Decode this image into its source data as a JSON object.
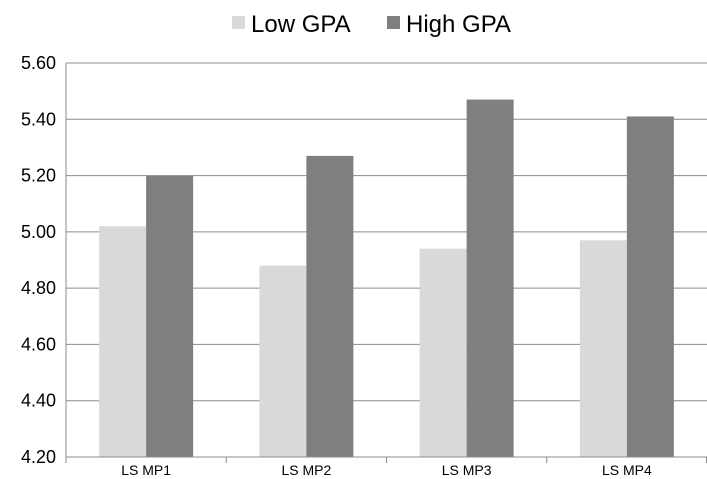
{
  "chart_data": {
    "type": "bar",
    "categories": [
      "LS MP1",
      "LS MP2",
      "LS MP3",
      "LS MP4"
    ],
    "series": [
      {
        "name": "Low GPA",
        "values": [
          5.02,
          4.88,
          4.94,
          4.97
        ],
        "color": "#d9d9d9"
      },
      {
        "name": "High GPA",
        "values": [
          5.2,
          5.27,
          5.47,
          5.41
        ],
        "color": "#7f7f7f"
      }
    ],
    "ylim": [
      4.2,
      5.6
    ],
    "yticks": [
      "4.20",
      "4.40",
      "4.60",
      "4.80",
      "5.00",
      "5.20",
      "5.40",
      "5.60"
    ],
    "grid": true,
    "legend_position": "top-center",
    "title": "",
    "xlabel": "",
    "ylabel": ""
  }
}
